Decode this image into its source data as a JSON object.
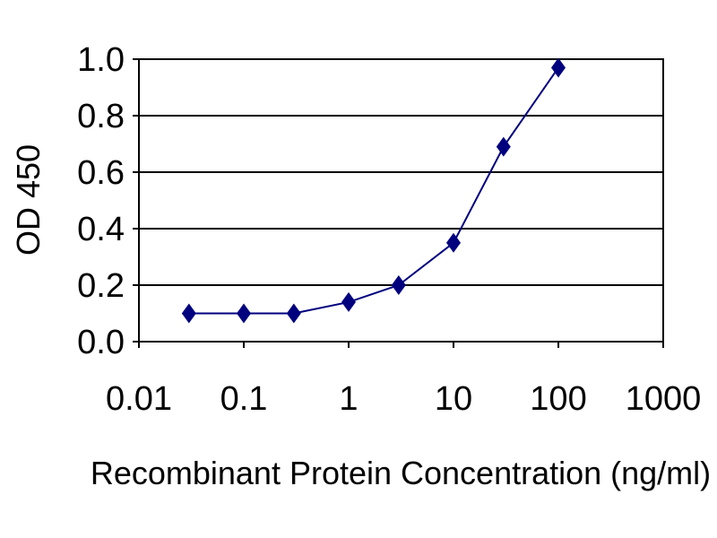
{
  "chart_data": {
    "type": "line",
    "xlabel": "Recombinant Protein Concentration (ng/ml)",
    "ylabel": "OD 450",
    "x_scale": "log",
    "xlim": [
      0.01,
      1000
    ],
    "ylim": [
      0.0,
      1.0
    ],
    "x_ticks": [
      "0.01",
      "0.1",
      "1",
      "10",
      "100",
      "1000"
    ],
    "y_ticks": [
      "0.0",
      "0.2",
      "0.4",
      "0.6",
      "0.8",
      "1.0"
    ],
    "grid": "horizontal",
    "series": [
      {
        "x": [
          0.03,
          0.1,
          0.3,
          1,
          3,
          10,
          30,
          100
        ],
        "y": [
          0.1,
          0.1,
          0.1,
          0.14,
          0.2,
          0.35,
          0.69,
          0.97
        ],
        "color": "#00007f",
        "marker": "diamond"
      }
    ]
  }
}
